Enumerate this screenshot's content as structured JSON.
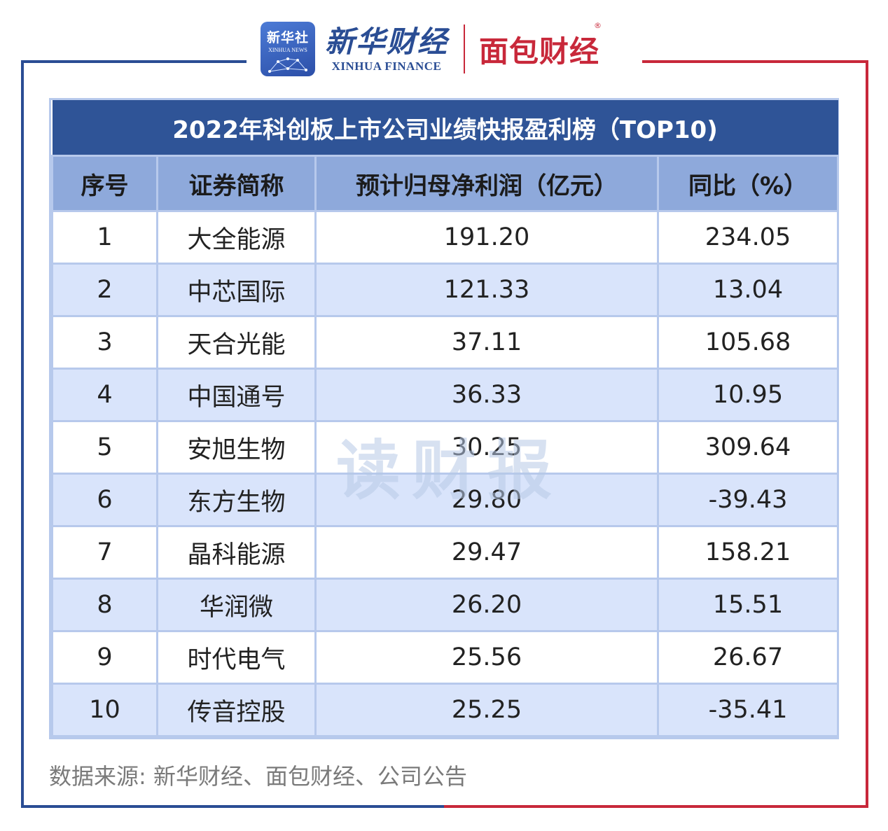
{
  "header": {
    "xinhua_news_cn": "新华社",
    "xinhua_news_en": "XINHUA NEWS",
    "xinhua_finance_cn": "新华财经",
    "xinhua_finance_en": "XINHUA FINANCE",
    "mianbao_cn": "面包财经",
    "registered_mark": "®"
  },
  "table": {
    "title": "2022年科创板上市公司业绩快报盈利榜（TOP10)",
    "columns": [
      "序号",
      "证券简称",
      "预计归母净利润（亿元）",
      "同比（%）"
    ],
    "rows": [
      [
        "1",
        "大全能源",
        "191.20",
        "234.05"
      ],
      [
        "2",
        "中芯国际",
        "121.33",
        "13.04"
      ],
      [
        "3",
        "天合光能",
        "37.11",
        "105.68"
      ],
      [
        "4",
        "中国通号",
        "36.33",
        "10.95"
      ],
      [
        "5",
        "安旭生物",
        "30.25",
        "309.64"
      ],
      [
        "6",
        "东方生物",
        "29.80",
        "-39.43"
      ],
      [
        "7",
        "晶科能源",
        "29.47",
        "158.21"
      ],
      [
        "8",
        "华润微",
        "26.20",
        "15.51"
      ],
      [
        "9",
        "时代电气",
        "25.56",
        "26.67"
      ],
      [
        "10",
        "传音控股",
        "25.25",
        "-35.41"
      ]
    ]
  },
  "watermark": "读财报",
  "source": "数据来源: 新华财经、面包财经、公司公告",
  "colors": {
    "title_bg": "#2f5497",
    "header_bg": "#8ea9db",
    "stripe_bg": "#d9e4fb",
    "border": "#b7c9ec",
    "frame_blue": "#2a4d94",
    "frame_red": "#c8283a"
  }
}
